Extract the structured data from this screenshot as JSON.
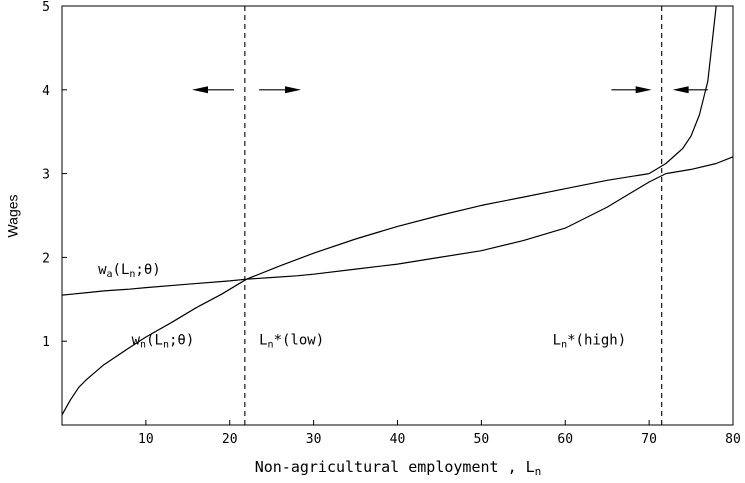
{
  "chart_data": {
    "type": "line",
    "xlabel": "Non-agricultural employment , L",
    "xlabel_sub": "n",
    "ylabel": "Wages",
    "xlim": [
      0,
      80
    ],
    "ylim": [
      0,
      5
    ],
    "x_ticks": [
      10,
      20,
      30,
      40,
      50,
      60,
      70,
      80
    ],
    "y_ticks": [
      1,
      2,
      3,
      4,
      5
    ],
    "grid": false,
    "series": [
      {
        "key": "wa",
        "x": [
          0,
          1,
          3,
          5,
          8,
          10,
          15,
          20,
          22,
          25,
          28,
          30,
          35,
          40,
          45,
          50,
          55,
          60,
          65,
          70,
          72,
          75,
          78,
          80
        ],
        "y": [
          1.55,
          1.56,
          1.58,
          1.6,
          1.62,
          1.64,
          1.68,
          1.72,
          1.74,
          1.76,
          1.78,
          1.8,
          1.86,
          1.92,
          2.0,
          2.08,
          2.2,
          2.35,
          2.6,
          2.9,
          3.0,
          3.05,
          3.12,
          3.2
        ]
      },
      {
        "key": "wn",
        "x": [
          0,
          1,
          2,
          3,
          5,
          8,
          10,
          13,
          16,
          19,
          22,
          26,
          30,
          35,
          40,
          45,
          50,
          55,
          60,
          65,
          70,
          72,
          74,
          75,
          76,
          77,
          78
        ],
        "y": [
          0.12,
          0.3,
          0.45,
          0.55,
          0.72,
          0.92,
          1.05,
          1.22,
          1.4,
          1.56,
          1.74,
          1.9,
          2.05,
          2.22,
          2.37,
          2.5,
          2.62,
          2.72,
          2.82,
          2.92,
          3.0,
          3.12,
          3.3,
          3.45,
          3.7,
          4.1,
          5.0
        ]
      }
    ],
    "vlines": [
      21.8,
      71.5
    ],
    "arrows": [
      {
        "x1": 20.5,
        "x2": 15.5,
        "y": 4.0
      },
      {
        "x1": 23.5,
        "x2": 28.5,
        "y": 4.0
      },
      {
        "x1": 65.5,
        "x2": 70.3,
        "y": 4.0
      },
      {
        "x1": 77.0,
        "x2": 72.8,
        "y": 4.0
      }
    ],
    "annotations": [
      {
        "key": "wa",
        "x": 4.3,
        "y": 1.8,
        "text": "w",
        "sub": "a",
        "args": "(L",
        "args_sub": "n",
        "tail": ";θ)"
      },
      {
        "key": "wn",
        "x": 8.3,
        "y": 0.96,
        "text": "w",
        "sub": "n",
        "args": "(L",
        "args_sub": "n",
        "tail": ";θ)"
      },
      {
        "key": "low",
        "x": 23.5,
        "y": 0.96,
        "text": "L",
        "sub": "n",
        "args": "*(low)",
        "args_sub": "",
        "tail": ""
      },
      {
        "key": "high",
        "x": 58.5,
        "y": 0.96,
        "text": "L",
        "sub": "n",
        "args": "*(high)",
        "args_sub": "",
        "tail": ""
      }
    ]
  }
}
